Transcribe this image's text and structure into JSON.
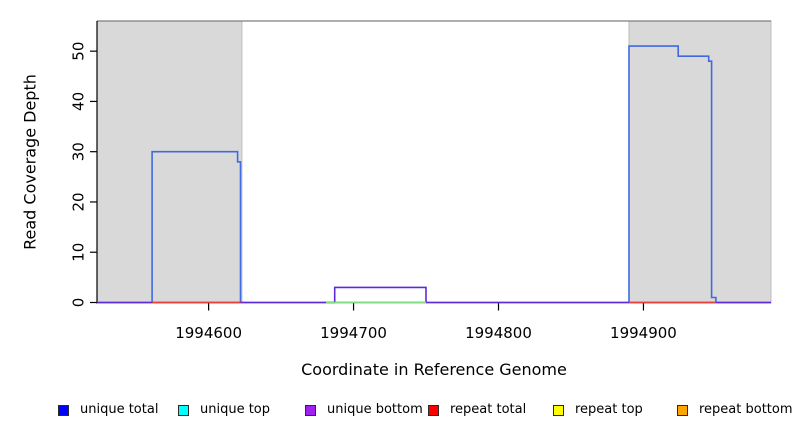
{
  "chart_data": {
    "type": "line",
    "title": "",
    "xlabel": "Coordinate in Reference Genome",
    "ylabel": "Read Coverage Depth",
    "xlim": [
      1994523,
      1994988
    ],
    "ylim": [
      0,
      56
    ],
    "x_ticks": [
      1994600,
      1994700,
      1994800,
      1994900
    ],
    "y_ticks": [
      0,
      10,
      20,
      30,
      40,
      50
    ],
    "grid": false,
    "legend_position": "bottom",
    "plot_background": "#ffffff",
    "shaded_region_color": "#d9d9d9",
    "shaded_regions": [
      {
        "name": "repeat-region-left",
        "x0": 1994523,
        "x1": 1994623
      },
      {
        "name": "repeat-region-right",
        "x0": 1994890,
        "x1": 1994988
      }
    ],
    "series": [
      {
        "name": "unique total",
        "color": "#4169e1",
        "points": [
          [
            1994523,
            0
          ],
          [
            1994561,
            0
          ],
          [
            1994561,
            30
          ],
          [
            1994620,
            30
          ],
          [
            1994620,
            28
          ],
          [
            1994622,
            28
          ],
          [
            1994622,
            0
          ],
          [
            1994890,
            0
          ],
          [
            1994890,
            51
          ],
          [
            1994924,
            51
          ],
          [
            1994924,
            49
          ],
          [
            1994945,
            49
          ],
          [
            1994945,
            48
          ],
          [
            1994947,
            48
          ],
          [
            1994947,
            1
          ],
          [
            1994950,
            1
          ],
          [
            1994950,
            0
          ],
          [
            1994988,
            0
          ]
        ]
      },
      {
        "name": "unique bottom",
        "color": "#5e2bd9",
        "points": [
          [
            1994523,
            0
          ],
          [
            1994687,
            0
          ],
          [
            1994687,
            3
          ],
          [
            1994750,
            3
          ],
          [
            1994750,
            0
          ],
          [
            1994988,
            0
          ]
        ]
      }
    ],
    "baseline_segments": [
      {
        "name": "repeat total left",
        "color": "#e84040",
        "x0": 1994561,
        "x1": 1994622,
        "y": 0
      },
      {
        "name": "repeat total right",
        "color": "#e84040",
        "x0": 1994890,
        "x1": 1994950,
        "y": 0
      },
      {
        "name": "top overlap green",
        "color": "#82dd82",
        "x0": 1994681,
        "x1": 1994750,
        "y": 0
      }
    ]
  },
  "legend": {
    "items": [
      {
        "label": "unique total",
        "color": "#0000ff"
      },
      {
        "label": "unique top",
        "color": "#00ffff"
      },
      {
        "label": "unique bottom",
        "color": "#a020f0"
      },
      {
        "label": "repeat total",
        "color": "#ff0000"
      },
      {
        "label": "repeat top",
        "color": "#ffff00"
      },
      {
        "label": "repeat bottom",
        "color": "#ffa500"
      }
    ]
  }
}
